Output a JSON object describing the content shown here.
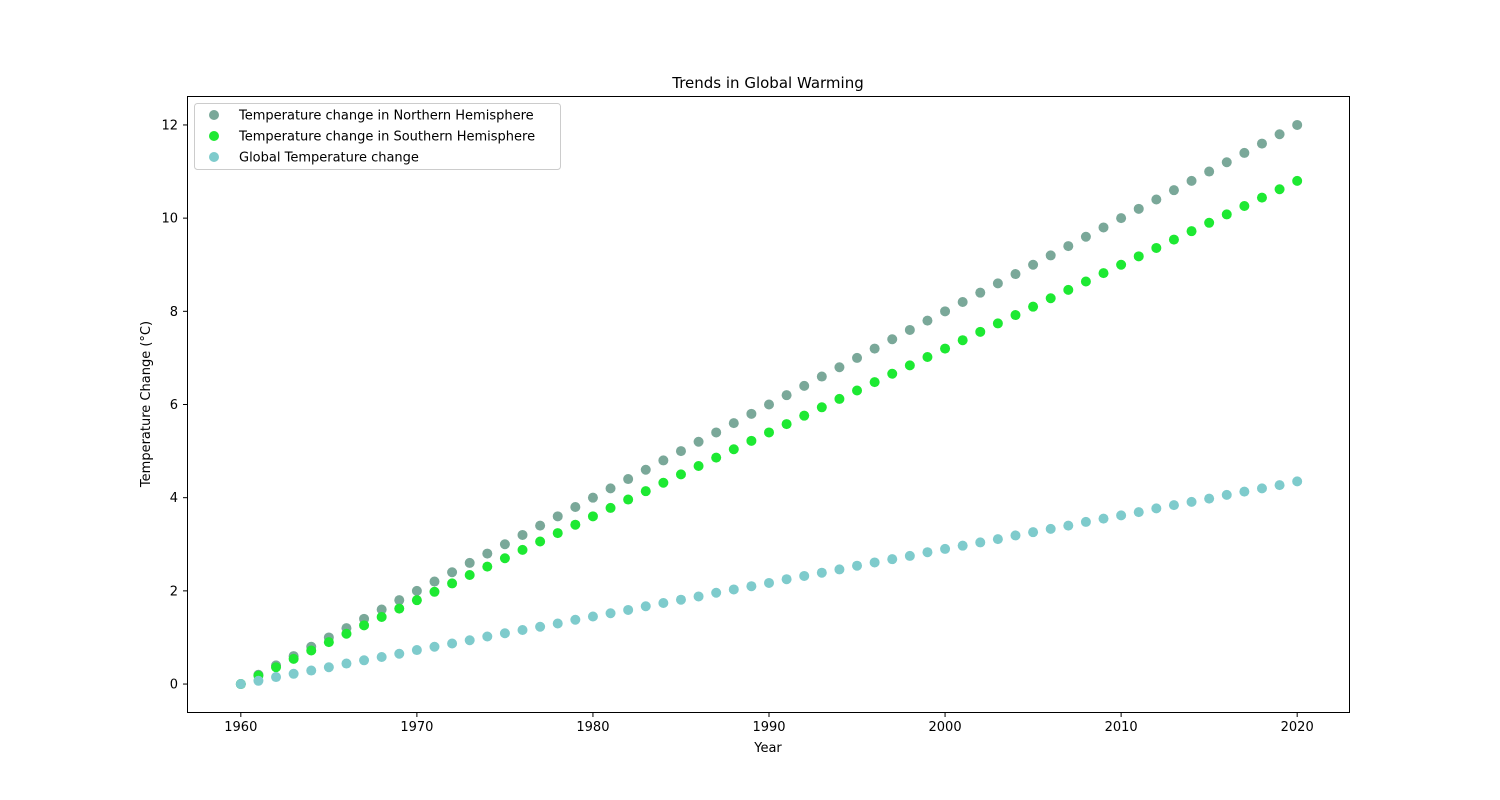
{
  "chart_data": {
    "type": "scatter",
    "title": "Trends in Global Warming",
    "xlabel": "Year",
    "ylabel": "Temperature Change (°C)",
    "xlim": [
      1957,
      2023
    ],
    "ylim": [
      -0.6,
      12.6
    ],
    "x_ticks": [
      1960,
      1970,
      1980,
      1990,
      2000,
      2010,
      2020
    ],
    "y_ticks": [
      0,
      2,
      4,
      6,
      8,
      10,
      12
    ],
    "grid": false,
    "legend_position": "top-left",
    "x": [
      1960,
      1961,
      1962,
      1963,
      1964,
      1965,
      1966,
      1967,
      1968,
      1969,
      1970,
      1971,
      1972,
      1973,
      1974,
      1975,
      1976,
      1977,
      1978,
      1979,
      1980,
      1981,
      1982,
      1983,
      1984,
      1985,
      1986,
      1987,
      1988,
      1989,
      1990,
      1991,
      1992,
      1993,
      1994,
      1995,
      1996,
      1997,
      1998,
      1999,
      2000,
      2001,
      2002,
      2003,
      2004,
      2005,
      2006,
      2007,
      2008,
      2009,
      2010,
      2011,
      2012,
      2013,
      2014,
      2015,
      2016,
      2017,
      2018,
      2019,
      2020
    ],
    "series": [
      {
        "name": "Temperature change in Northern Hemisphere",
        "color": "#7aa899",
        "values": [
          0.0,
          0.2,
          0.4,
          0.6,
          0.8,
          1.0,
          1.2,
          1.4,
          1.6,
          1.8,
          2.0,
          2.2,
          2.4,
          2.6,
          2.8,
          3.0,
          3.2,
          3.4,
          3.6,
          3.8,
          4.0,
          4.2,
          4.4,
          4.6,
          4.8,
          5.0,
          5.2,
          5.4,
          5.6,
          5.8,
          6.0,
          6.2,
          6.4,
          6.6,
          6.8,
          7.0,
          7.2,
          7.4,
          7.6,
          7.8,
          8.0,
          8.2,
          8.4,
          8.6,
          8.8,
          9.0,
          9.2,
          9.4,
          9.6,
          9.8,
          10.0,
          10.2,
          10.4,
          10.6,
          10.8,
          11.0,
          11.2,
          11.4,
          11.6,
          11.8,
          12.0
        ]
      },
      {
        "name": "Temperature change in Southern Hemisphere",
        "color": "#1de932",
        "values": [
          0.0,
          0.18,
          0.36,
          0.54,
          0.72,
          0.9,
          1.08,
          1.26,
          1.44,
          1.62,
          1.8,
          1.98,
          2.16,
          2.34,
          2.52,
          2.7,
          2.88,
          3.06,
          3.24,
          3.42,
          3.6,
          3.78,
          3.96,
          4.14,
          4.32,
          4.5,
          4.68,
          4.86,
          5.04,
          5.22,
          5.4,
          5.58,
          5.76,
          5.94,
          6.12,
          6.3,
          6.48,
          6.66,
          6.84,
          7.02,
          7.2,
          7.38,
          7.56,
          7.74,
          7.92,
          8.1,
          8.28,
          8.46,
          8.64,
          8.82,
          9.0,
          9.18,
          9.36,
          9.54,
          9.72,
          9.9,
          10.08,
          10.26,
          10.44,
          10.62,
          10.8
        ]
      },
      {
        "name": "Global Temperature change",
        "color": "#7ecbcc",
        "values": [
          0.0,
          0.07,
          0.15,
          0.22,
          0.29,
          0.36,
          0.44,
          0.51,
          0.58,
          0.65,
          0.73,
          0.8,
          0.87,
          0.94,
          1.02,
          1.09,
          1.16,
          1.23,
          1.3,
          1.38,
          1.45,
          1.52,
          1.59,
          1.67,
          1.74,
          1.81,
          1.88,
          1.96,
          2.03,
          2.1,
          2.17,
          2.25,
          2.32,
          2.39,
          2.46,
          2.54,
          2.61,
          2.68,
          2.75,
          2.83,
          2.9,
          2.97,
          3.04,
          3.11,
          3.19,
          3.26,
          3.33,
          3.4,
          3.48,
          3.55,
          3.62,
          3.69,
          3.77,
          3.84,
          3.91,
          3.98,
          4.06,
          4.13,
          4.2,
          4.27,
          4.35
        ]
      }
    ]
  }
}
